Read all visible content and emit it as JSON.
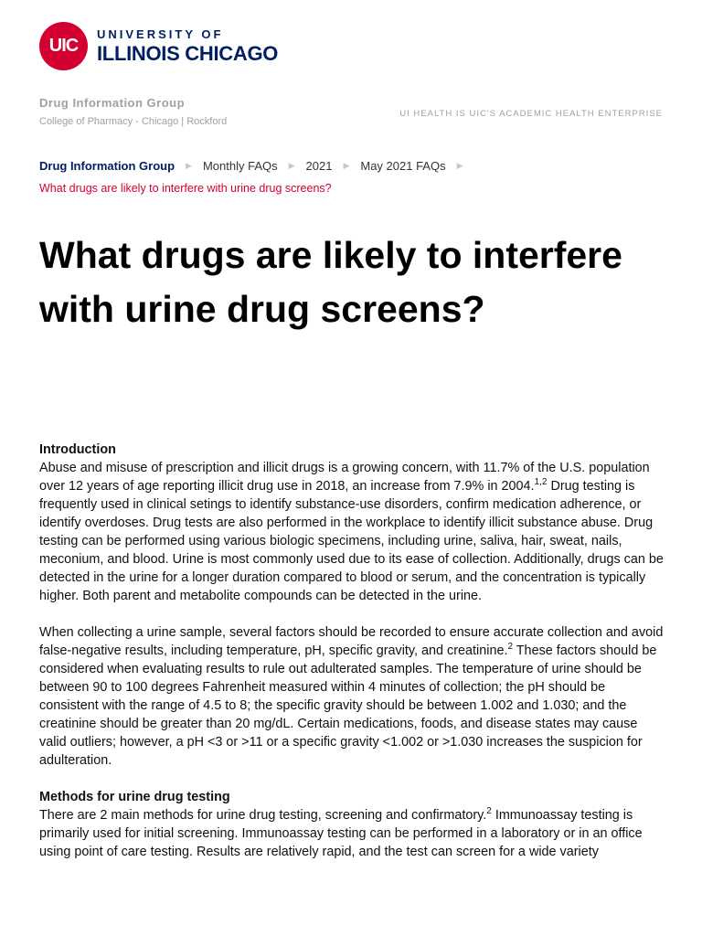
{
  "brand": {
    "logo_mark": "UIC",
    "logo_line1": "UNIVERSITY OF",
    "logo_line2": "ILLINOIS CHICAGO",
    "color": "#d50032",
    "navy": "#001e62"
  },
  "header": {
    "group": "Drug Information Group",
    "subtitle": "College of Pharmacy - Chicago | Rockford",
    "tagline": "UI HEALTH IS UIC'S ACADEMIC HEALTH ENTERPRISE"
  },
  "breadcrumb": {
    "items": [
      "Drug Information Group",
      "Monthly FAQs",
      "2021",
      "May 2021 FAQs"
    ],
    "current": "What drugs are likely to interfere with urine drug screens?"
  },
  "title": "What drugs are likely to interfere with urine drug screens?",
  "sections": {
    "intro_heading": "Introduction",
    "p1a": "Abuse and misuse of prescription and illicit drugs is a growing concern, with 11.7% of the U.S. population over 12 years of age reporting illicit drug use in 2018, an increase from 7.9% in 2004.",
    "p1_sup": "1,2",
    "p1b": " Drug testing is frequently used in clinical setings to identify substance-use disorders, confirm medication adherence, or identify overdoses. Drug tests are also performed in the workplace to identify illicit substance abuse. Drug testing can be performed using various biologic specimens, including urine, saliva, hair, sweat, nails, meconium, and blood. Urine is most commonly used due to its ease of collection. Additionally, drugs can be detected in the urine for a longer duration compared to blood or serum, and the concentration is typically higher. Both parent and metabolite compounds can be detected in the urine.",
    "p2a": "When collecting a urine sample, several factors should be recorded to ensure accurate collection and avoid false-negative results, including temperature, pH, specific gravity, and creatinine.",
    "p2_sup": "2",
    "p2b": " These factors should be considered when evaluating results to rule out adulterated samples. The temperature of urine should be between 90 to 100 degrees Fahrenheit measured within 4 minutes of collection; the pH should be consistent with the range of 4.5 to 8; the specific gravity should be between 1.002 and 1.030; and the creatinine should be greater than 20 mg/dL. Certain medications, foods, and disease states may cause valid outliers; however, a pH <3 or >11 or a specific gravity <1.002 or >1.030 increases the suspicion for adulteration.",
    "methods_heading": "Methods for urine drug testing",
    "p3a": "There are 2 main methods for urine drug testing, screening and confirmatory.",
    "p3_sup": "2",
    "p3b": " Immunoassay testing is primarily used for initial screening. Immunoassay testing can be performed in a laboratory or in an office using point of care testing. Results are relatively rapid, and the test can screen for a wide variety"
  }
}
